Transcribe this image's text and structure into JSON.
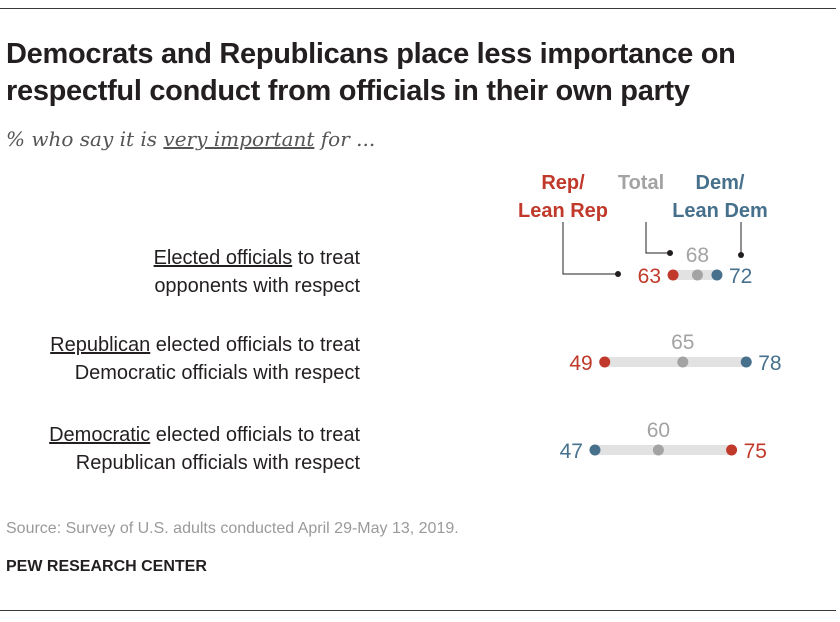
{
  "title_lines": [
    "Democrats and Republicans place less importance on",
    "respectful conduct from officials in their own party"
  ],
  "subtitle": {
    "before": "% who say it is ",
    "underlined": "very important",
    "after": " for ..."
  },
  "colors": {
    "rep": "#c0392b",
    "total": "#a3a3a3",
    "dem": "#46708c",
    "bar": "#e2e2e2",
    "leader": "#231f20"
  },
  "chart_data": {
    "type": "dot",
    "legend": {
      "rep": [
        "Rep/",
        "Lean Rep"
      ],
      "total": [
        "Total"
      ],
      "dem": [
        "Dem/",
        "Lean Dem"
      ]
    },
    "categories": [
      {
        "underlined": "Elected officials",
        "rest_line1": " to treat",
        "line2": "opponents with respect"
      },
      {
        "underlined": "Republican",
        "rest_line1": " elected officials to treat",
        "line2": "Democratic officials with respect"
      },
      {
        "underlined": "Democratic",
        "rest_line1": " elected officials to treat",
        "line2": "Republican officials with respect"
      }
    ],
    "series": [
      {
        "name": "Rep/Lean Rep",
        "key": "rep",
        "values": [
          63,
          49,
          75
        ]
      },
      {
        "name": "Total",
        "key": "total",
        "values": [
          68,
          65,
          60
        ]
      },
      {
        "name": "Dem/Lean Dem",
        "key": "dem",
        "values": [
          72,
          78,
          47
        ]
      }
    ]
  },
  "source": "Source: Survey of U.S. adults conducted April 29-May 13, 2019.",
  "brand": "PEW RESEARCH CENTER"
}
